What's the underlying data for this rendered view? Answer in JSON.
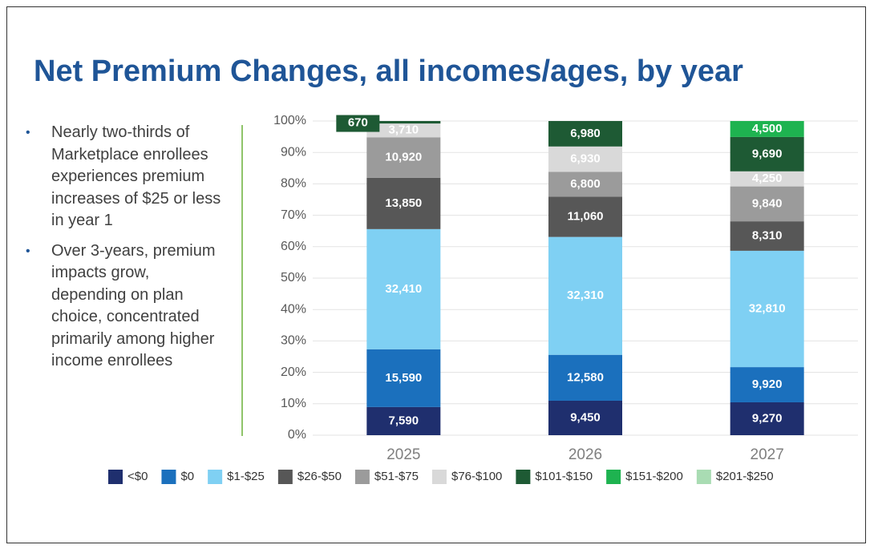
{
  "bullets": [
    "Nearly two-thirds of Marketplace enrollees experiences premium increases of $25 or less in year 1",
    "Over 3-years, premium impacts grow, depending on plan choice, concentrated primarily among higher income enrollees"
  ],
  "chart_data": {
    "type": "bar",
    "stacked": "percent",
    "title": "Net Premium Changes, all incomes/ages, by year",
    "categories": [
      "2025",
      "2026",
      "2027"
    ],
    "ylim": [
      0,
      100
    ],
    "yticks": [
      {
        "value": 0,
        "label": "0%"
      },
      {
        "value": 10,
        "label": "10%"
      },
      {
        "value": 20,
        "label": "20%"
      },
      {
        "value": 30,
        "label": "30%"
      },
      {
        "value": 40,
        "label": "40%"
      },
      {
        "value": 50,
        "label": "50%"
      },
      {
        "value": 60,
        "label": "60%"
      },
      {
        "value": 70,
        "label": "70%"
      },
      {
        "value": 80,
        "label": "80%"
      },
      {
        "value": 90,
        "label": "90%"
      },
      {
        "value": 100,
        "label": "100%"
      }
    ],
    "grid": true,
    "legend": "bottom",
    "series": [
      {
        "name": "<$0",
        "color": "#1f2f6e",
        "values": [
          7590,
          9450,
          9270
        ],
        "value_labels": [
          "7,590",
          "9,450",
          "9,270"
        ]
      },
      {
        "name": "$0",
        "color": "#1b70bd",
        "values": [
          15590,
          12580,
          9920
        ],
        "value_labels": [
          "15,590",
          "12,580",
          "9,920"
        ]
      },
      {
        "name": "$1-$25",
        "color": "#7fd0f3",
        "values": [
          32410,
          32310,
          32810
        ],
        "value_labels": [
          "32,410",
          "32,310",
          "32,810"
        ]
      },
      {
        "name": "$26-$50",
        "color": "#575757",
        "values": [
          13850,
          11060,
          8310
        ],
        "value_labels": [
          "13,850",
          "11,060",
          "8,310"
        ]
      },
      {
        "name": "$51-$75",
        "color": "#9b9b9b",
        "values": [
          10920,
          6800,
          9840
        ],
        "value_labels": [
          "10,920",
          "6,800",
          "9,840"
        ]
      },
      {
        "name": "$76-$100",
        "color": "#d9d9d9",
        "values": [
          3710,
          6930,
          4250
        ],
        "value_labels": [
          "3,710",
          "6,930",
          "4,250"
        ]
      },
      {
        "name": "$101-$150",
        "color": "#1e5a34",
        "values": [
          670,
          6980,
          9690
        ],
        "value_labels": [
          "670",
          "6,980",
          "9,690"
        ]
      },
      {
        "name": "$151-$200",
        "color": "#1eb350",
        "values": [
          null,
          null,
          4500
        ],
        "value_labels": [
          null,
          null,
          "4,500"
        ]
      },
      {
        "name": "$201-$250",
        "color": "#a9dcb3",
        "values": [
          null,
          null,
          null
        ],
        "value_labels": [
          null,
          null,
          null
        ]
      }
    ]
  }
}
